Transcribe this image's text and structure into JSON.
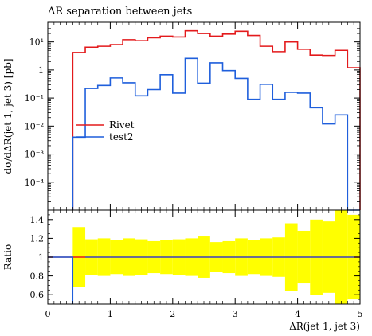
{
  "chart_data": {
    "type": "line",
    "title": "ΔR separation between jets",
    "bin_edges": [
      0.4,
      0.6,
      0.8,
      1.0,
      1.2,
      1.4,
      1.6,
      1.8,
      2.0,
      2.2,
      2.4,
      2.6,
      2.8,
      3.0,
      3.2,
      3.4,
      3.6,
      3.8,
      4.0,
      4.2,
      4.4,
      4.6,
      4.8,
      5.0
    ],
    "series": [
      {
        "name": "Rivet",
        "color": "#e31a1c",
        "values": [
          4.2,
          6.5,
          7.0,
          8.0,
          12.0,
          11.0,
          14.0,
          16.0,
          15.0,
          25.0,
          20.0,
          16.0,
          19.0,
          24.0,
          17.0,
          7.0,
          4.5,
          10.0,
          5.5,
          3.4,
          3.3,
          5.0,
          1.2
        ]
      },
      {
        "name": "test2",
        "color": "#1f5fdc",
        "values": [
          0.004,
          0.22,
          0.28,
          0.52,
          0.35,
          0.12,
          0.2,
          0.68,
          0.15,
          2.6,
          0.34,
          1.8,
          0.95,
          0.5,
          0.09,
          0.31,
          0.09,
          0.16,
          0.15,
          0.045,
          0.012,
          0.025,
          1e-05
        ]
      }
    ],
    "main_plot": {
      "ylabel": "dσ/dΔR(jet 1, jet 3) [pb]",
      "ylim_log10": [
        -5,
        1.7
      ],
      "yticks": [
        {
          "value": 10,
          "label": "10¹"
        },
        {
          "value": 1,
          "label": "1"
        },
        {
          "value": 0.1,
          "label": "10⁻¹"
        },
        {
          "value": 0.01,
          "label": "10⁻²"
        },
        {
          "value": 0.001,
          "label": "10⁻³"
        },
        {
          "value": 0.0001,
          "label": "10⁻⁴"
        },
        {
          "value": 1e-05,
          "label": "10⁻⁵"
        }
      ]
    },
    "ratio_plot": {
      "ylabel": "Ratio",
      "ylim": [
        0.5,
        1.5
      ],
      "yticks": [
        {
          "value": 0.6,
          "label": "0.6"
        },
        {
          "value": 0.8,
          "label": "0.8"
        },
        {
          "value": 1.0,
          "label": "1"
        },
        {
          "value": 1.2,
          "label": "1.2"
        },
        {
          "value": 1.4,
          "label": "1.4"
        }
      ],
      "band_color": "#ffff00",
      "band_halfwidth": [
        0.32,
        0.19,
        0.2,
        0.18,
        0.2,
        0.19,
        0.17,
        0.18,
        0.19,
        0.2,
        0.22,
        0.16,
        0.17,
        0.2,
        0.18,
        0.2,
        0.21,
        0.36,
        0.28,
        0.4,
        0.38,
        0.5,
        0.45
      ],
      "test2_ratio_note": "blue ratio line at 1, drops below range at first bin"
    },
    "xlabel": "ΔR(jet 1, jet 3)",
    "xlim": [
      0,
      5
    ],
    "xticks": [
      {
        "value": 0,
        "label": "0"
      },
      {
        "value": 1,
        "label": "1"
      },
      {
        "value": 2,
        "label": "2"
      },
      {
        "value": 3,
        "label": "3"
      },
      {
        "value": 4,
        "label": "4"
      },
      {
        "value": 5,
        "label": "5"
      }
    ],
    "legend_position": "middle-left"
  }
}
